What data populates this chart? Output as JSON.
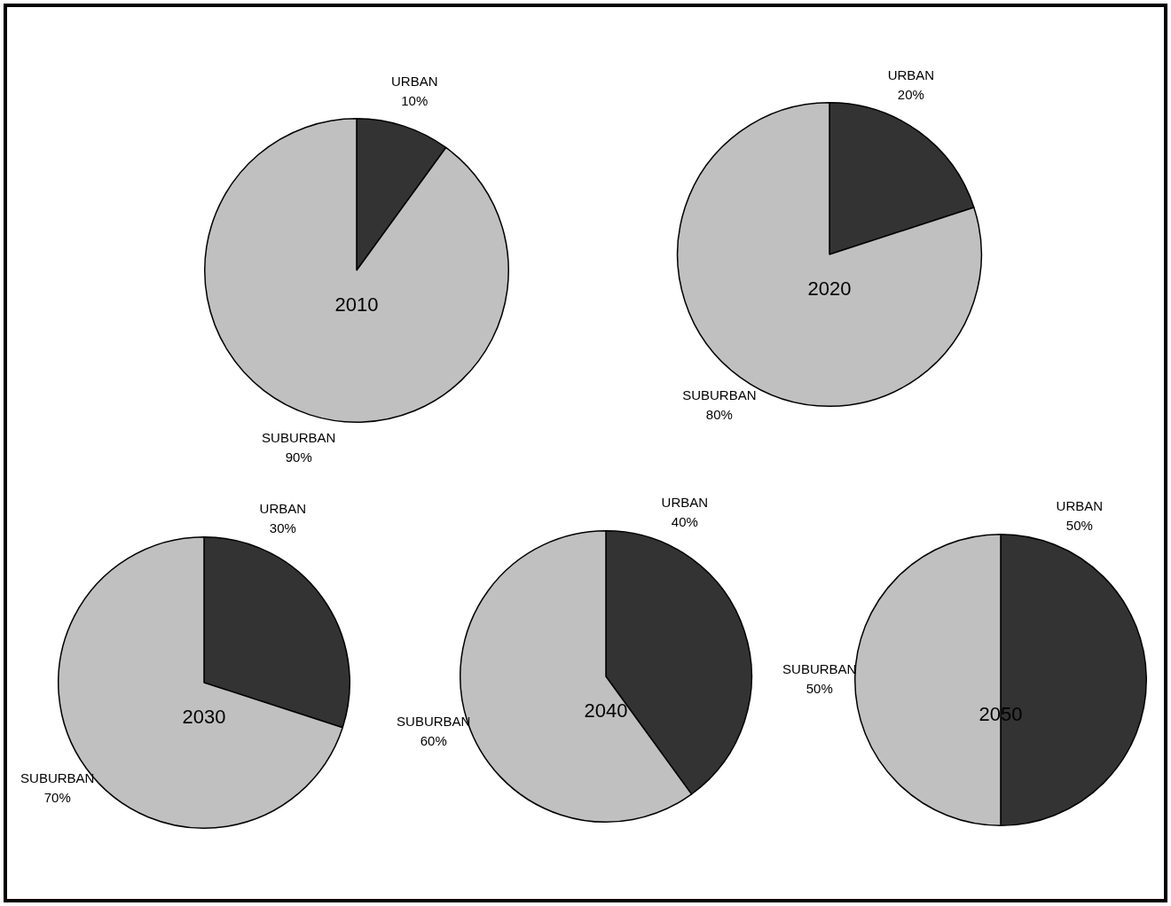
{
  "chart_data": [
    {
      "type": "pie",
      "title": "2010",
      "categories": [
        "URBAN",
        "SUBURBAN"
      ],
      "values": [
        10,
        90
      ],
      "value_labels": [
        "10%",
        "90%"
      ],
      "colors": [
        "#333333",
        "#c0c0c0"
      ]
    },
    {
      "type": "pie",
      "title": "2020",
      "categories": [
        "URBAN",
        "SUBURBAN"
      ],
      "values": [
        20,
        80
      ],
      "value_labels": [
        "20%",
        "80%"
      ],
      "colors": [
        "#333333",
        "#c0c0c0"
      ]
    },
    {
      "type": "pie",
      "title": "2030",
      "categories": [
        "URBAN",
        "SUBURBAN"
      ],
      "values": [
        30,
        70
      ],
      "value_labels": [
        "30%",
        "70%"
      ],
      "colors": [
        "#333333",
        "#c0c0c0"
      ]
    },
    {
      "type": "pie",
      "title": "2040",
      "categories": [
        "URBAN",
        "SUBURBAN"
      ],
      "values": [
        40,
        60
      ],
      "value_labels": [
        "40%",
        "60%"
      ],
      "colors": [
        "#333333",
        "#c0c0c0"
      ]
    },
    {
      "type": "pie",
      "title": "2050",
      "categories": [
        "URBAN",
        "SUBURBAN"
      ],
      "values": [
        50,
        50
      ],
      "value_labels": [
        "50%",
        "50%"
      ],
      "colors": [
        "#333333",
        "#c0c0c0"
      ]
    }
  ]
}
